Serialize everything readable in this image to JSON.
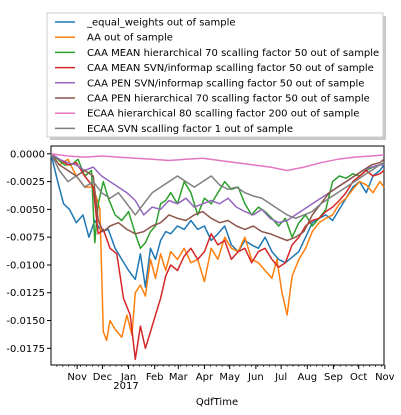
{
  "chart_data": {
    "type": "line",
    "title": "",
    "xlabel": "QdfTime",
    "ylabel": "",
    "year_label": "2017",
    "x_tick_labels": [
      "Nov",
      "Dec",
      "Jan",
      "Feb",
      "Mar",
      "Apr",
      "May",
      "Jun",
      "Jul",
      "Aug",
      "Sep",
      "Oct",
      "Nov"
    ],
    "y_tick_labels": [
      "0.0000",
      "-0.0025",
      "-0.0050",
      "-0.0075",
      "-0.0100",
      "-0.0125",
      "-0.0150",
      "-0.0175"
    ],
    "y_ticks": [
      0.0,
      -0.0025,
      -0.005,
      -0.0075,
      -0.01,
      -0.0125,
      -0.015,
      -0.0175
    ],
    "ylim": [
      -0.019,
      0.0007
    ],
    "xlim": [
      0,
      395
    ],
    "x_tick_days": [
      31,
      61,
      92,
      123,
      151,
      182,
      212,
      243,
      273,
      304,
      335,
      365,
      396
    ],
    "legend_position": "upper center, above plot",
    "grid": false,
    "series": [
      {
        "name": "_equal_weights out of sample",
        "color": "#1f77b4",
        "x": [
          0,
          8,
          15,
          22,
          30,
          38,
          45,
          52,
          60,
          68,
          76,
          84,
          92,
          100,
          106,
          112,
          118,
          124,
          130,
          136,
          142,
          150,
          158,
          166,
          174,
          182,
          190,
          198,
          206,
          214,
          222,
          230,
          238,
          246,
          254,
          262,
          270,
          278,
          286,
          294,
          302,
          310,
          318,
          326,
          334,
          342,
          350,
          358,
          366,
          374,
          382,
          390,
          395
        ],
        "y": [
          0.0,
          -0.0025,
          -0.0045,
          -0.005,
          -0.0062,
          -0.0055,
          -0.0075,
          -0.006,
          -0.007,
          -0.0068,
          -0.0085,
          -0.0095,
          -0.0105,
          -0.0113,
          -0.009,
          -0.012,
          -0.0085,
          -0.0095,
          -0.0078,
          -0.007,
          -0.0072,
          -0.0065,
          -0.0068,
          -0.006,
          -0.0068,
          -0.0065,
          -0.0078,
          -0.0072,
          -0.0065,
          -0.0082,
          -0.0088,
          -0.0078,
          -0.0082,
          -0.0085,
          -0.0075,
          -0.0088,
          -0.0095,
          -0.0098,
          -0.0093,
          -0.0088,
          -0.0075,
          -0.0062,
          -0.0058,
          -0.0055,
          -0.006,
          -0.005,
          -0.004,
          -0.003,
          -0.0025,
          -0.0035,
          -0.002,
          -0.0015,
          -0.001
        ]
      },
      {
        "name": "AA out of sample",
        "color": "#ff7f0e",
        "x": [
          0,
          10,
          20,
          30,
          40,
          50,
          58,
          62,
          66,
          70,
          76,
          84,
          90,
          96,
          100,
          106,
          112,
          118,
          124,
          130,
          136,
          142,
          150,
          158,
          166,
          174,
          182,
          190,
          198,
          206,
          214,
          222,
          230,
          238,
          246,
          254,
          262,
          268,
          274,
          280,
          286,
          294,
          302,
          310,
          318,
          326,
          334,
          342,
          350,
          358,
          366,
          374,
          382,
          390,
          395
        ],
        "y": [
          0.0,
          -0.001,
          -0.0005,
          -0.002,
          -0.003,
          -0.003,
          -0.005,
          -0.016,
          -0.0168,
          -0.015,
          -0.0158,
          -0.0165,
          -0.0145,
          -0.0163,
          -0.0125,
          -0.0118,
          -0.0128,
          -0.0095,
          -0.0112,
          -0.009,
          -0.0105,
          -0.0088,
          -0.0095,
          -0.0085,
          -0.0098,
          -0.0095,
          -0.0115,
          -0.0085,
          -0.0095,
          -0.0075,
          -0.0085,
          -0.0088,
          -0.0075,
          -0.0095,
          -0.0098,
          -0.0105,
          -0.0112,
          -0.0095,
          -0.0125,
          -0.0145,
          -0.011,
          -0.0095,
          -0.0085,
          -0.007,
          -0.0062,
          -0.0058,
          -0.0055,
          -0.0045,
          -0.004,
          -0.0032,
          -0.0025,
          -0.0028,
          -0.0035,
          -0.0025,
          -0.003
        ]
      },
      {
        "name": "CAA MEAN hierarchical 70 scalling factor 50 out of sample",
        "color": "#2ca02c",
        "x": [
          0,
          8,
          16,
          24,
          32,
          40,
          48,
          52,
          56,
          62,
          68,
          76,
          84,
          92,
          100,
          106,
          112,
          118,
          124,
          130,
          136,
          142,
          150,
          158,
          166,
          174,
          182,
          190,
          198,
          206,
          214,
          222,
          230,
          238,
          246,
          254,
          262,
          270,
          278,
          286,
          294,
          302,
          310,
          318,
          326,
          334,
          342,
          350,
          358,
          366,
          374,
          382,
          390,
          395
        ],
        "y": [
          0.0,
          -0.0005,
          -0.001,
          -0.001,
          -0.0005,
          -0.002,
          -0.0015,
          -0.008,
          -0.0045,
          -0.0025,
          -0.004,
          -0.0055,
          -0.006,
          -0.0052,
          -0.0072,
          -0.0085,
          -0.008,
          -0.007,
          -0.0065,
          -0.0045,
          -0.0042,
          -0.0035,
          -0.0045,
          -0.0025,
          -0.0035,
          -0.0055,
          -0.004,
          -0.0045,
          -0.0035,
          -0.0025,
          -0.0032,
          -0.003,
          -0.0045,
          -0.0055,
          -0.0048,
          -0.0052,
          -0.0058,
          -0.0065,
          -0.0058,
          -0.0075,
          -0.0062,
          -0.0055,
          -0.0065,
          -0.0058,
          -0.005,
          -0.0025,
          -0.002,
          -0.0022,
          -0.0018,
          -0.002,
          -0.0015,
          -0.0012,
          -0.001,
          -0.0008
        ]
      },
      {
        "name": "CAA MEAN SVN/informap scalling factor 50 out of sample",
        "color": "#d62728",
        "x": [
          0,
          10,
          20,
          30,
          40,
          50,
          56,
          62,
          70,
          78,
          86,
          94,
          100,
          106,
          112,
          118,
          124,
          130,
          136,
          142,
          150,
          158,
          166,
          174,
          182,
          190,
          198,
          206,
          214,
          222,
          230,
          238,
          246,
          254,
          262,
          270,
          278,
          286,
          294,
          302,
          310,
          318,
          326,
          334,
          342,
          350,
          358,
          366,
          374,
          382,
          390,
          395
        ],
        "y": [
          0.0,
          -0.0005,
          -0.001,
          -0.0008,
          -0.002,
          -0.003,
          -0.0072,
          -0.0068,
          -0.0085,
          -0.009,
          -0.013,
          -0.0145,
          -0.0185,
          -0.0155,
          -0.0175,
          -0.016,
          -0.0145,
          -0.013,
          -0.011,
          -0.01,
          -0.0105,
          -0.0092,
          -0.0085,
          -0.0095,
          -0.0088,
          -0.0072,
          -0.0082,
          -0.0078,
          -0.0095,
          -0.0088,
          -0.0085,
          -0.0098,
          -0.0088,
          -0.0085,
          -0.0095,
          -0.0102,
          -0.0098,
          -0.0082,
          -0.0075,
          -0.0065,
          -0.006,
          -0.0058,
          -0.0052,
          -0.0048,
          -0.0042,
          -0.0035,
          -0.0025,
          -0.002,
          -0.0015,
          -0.002,
          -0.0018,
          -0.0015
        ]
      },
      {
        "name": "CAA PEN SVN/informap scalling factor 50 out of sample",
        "color": "#9467bd",
        "x": [
          0,
          10,
          20,
          30,
          40,
          50,
          60,
          70,
          80,
          90,
          100,
          110,
          120,
          130,
          140,
          150,
          160,
          170,
          180,
          190,
          200,
          210,
          220,
          230,
          240,
          250,
          260,
          270,
          280,
          290,
          300,
          310,
          320,
          330,
          340,
          350,
          360,
          370,
          380,
          390,
          395
        ],
        "y": [
          0.0,
          -0.0005,
          -0.0008,
          -0.001,
          -0.0015,
          -0.0012,
          -0.002,
          -0.0025,
          -0.003,
          -0.0035,
          -0.0042,
          -0.0055,
          -0.0048,
          -0.005,
          -0.0042,
          -0.0045,
          -0.004,
          -0.0048,
          -0.0045,
          -0.0042,
          -0.0045,
          -0.004,
          -0.0048,
          -0.0052,
          -0.0055,
          -0.005,
          -0.0058,
          -0.0062,
          -0.006,
          -0.0055,
          -0.005,
          -0.0045,
          -0.004,
          -0.0035,
          -0.003,
          -0.0025,
          -0.002,
          -0.0015,
          -0.0012,
          -0.001,
          -0.001
        ]
      },
      {
        "name": "CAA PEN  hierarchical 70 scalling factor 50 out of sample",
        "color": "#8c564b",
        "x": [
          0,
          10,
          20,
          30,
          40,
          50,
          56,
          62,
          70,
          80,
          90,
          100,
          110,
          120,
          130,
          140,
          150,
          160,
          170,
          180,
          190,
          200,
          210,
          220,
          230,
          240,
          250,
          260,
          270,
          280,
          290,
          300,
          310,
          320,
          330,
          340,
          350,
          360,
          370,
          380,
          390,
          395
        ],
        "y": [
          0.0,
          -0.001,
          -0.0015,
          -0.002,
          -0.0015,
          -0.002,
          -0.006,
          -0.007,
          -0.0065,
          -0.0062,
          -0.0068,
          -0.0072,
          -0.007,
          -0.0065,
          -0.0062,
          -0.0055,
          -0.0058,
          -0.006,
          -0.0055,
          -0.0052,
          -0.0058,
          -0.0062,
          -0.006,
          -0.0065,
          -0.0068,
          -0.0065,
          -0.007,
          -0.0072,
          -0.0075,
          -0.0078,
          -0.0075,
          -0.007,
          -0.0055,
          -0.0045,
          -0.0035,
          -0.003,
          -0.0025,
          -0.002,
          -0.0015,
          -0.001,
          -0.0008,
          -0.0005
        ]
      },
      {
        "name": "ECAA hierarchical 80 scalling factor 200 out of sample",
        "color": "#e377c2",
        "x": [
          0,
          20,
          40,
          60,
          80,
          100,
          120,
          140,
          160,
          180,
          200,
          220,
          240,
          260,
          280,
          300,
          320,
          340,
          360,
          380,
          395
        ],
        "y": [
          0.0,
          -0.0002,
          -0.0003,
          -0.0002,
          -0.0003,
          -0.0004,
          -0.0005,
          -0.0006,
          -0.0005,
          -0.0004,
          -0.0006,
          -0.0008,
          -0.001,
          -0.0012,
          -0.0015,
          -0.0012,
          -0.0008,
          -0.0005,
          -0.0003,
          -0.0002,
          -0.0001
        ]
      },
      {
        "name": "ECAA SVN scalling factor 1 out of sample",
        "color": "#7f7f7f",
        "x": [
          0,
          10,
          20,
          30,
          40,
          50,
          60,
          70,
          80,
          90,
          100,
          110,
          120,
          130,
          140,
          150,
          160,
          170,
          180,
          190,
          200,
          210,
          220,
          230,
          240,
          250,
          260,
          270,
          280,
          290,
          300,
          310,
          320,
          330,
          340,
          350,
          360,
          370,
          380,
          390,
          395
        ],
        "y": [
          0.0,
          -0.0015,
          -0.0025,
          -0.002,
          -0.003,
          -0.0025,
          -0.0035,
          -0.004,
          -0.0035,
          -0.0045,
          -0.0055,
          -0.0045,
          -0.0035,
          -0.003,
          -0.0025,
          -0.002,
          -0.0025,
          -0.003,
          -0.0025,
          -0.002,
          -0.0028,
          -0.0032,
          -0.003,
          -0.0035,
          -0.0038,
          -0.004,
          -0.0045,
          -0.005,
          -0.0055,
          -0.0058,
          -0.0055,
          -0.0052,
          -0.0045,
          -0.004,
          -0.0035,
          -0.003,
          -0.0025,
          -0.002,
          -0.0015,
          -0.001,
          -0.0008
        ]
      }
    ]
  }
}
